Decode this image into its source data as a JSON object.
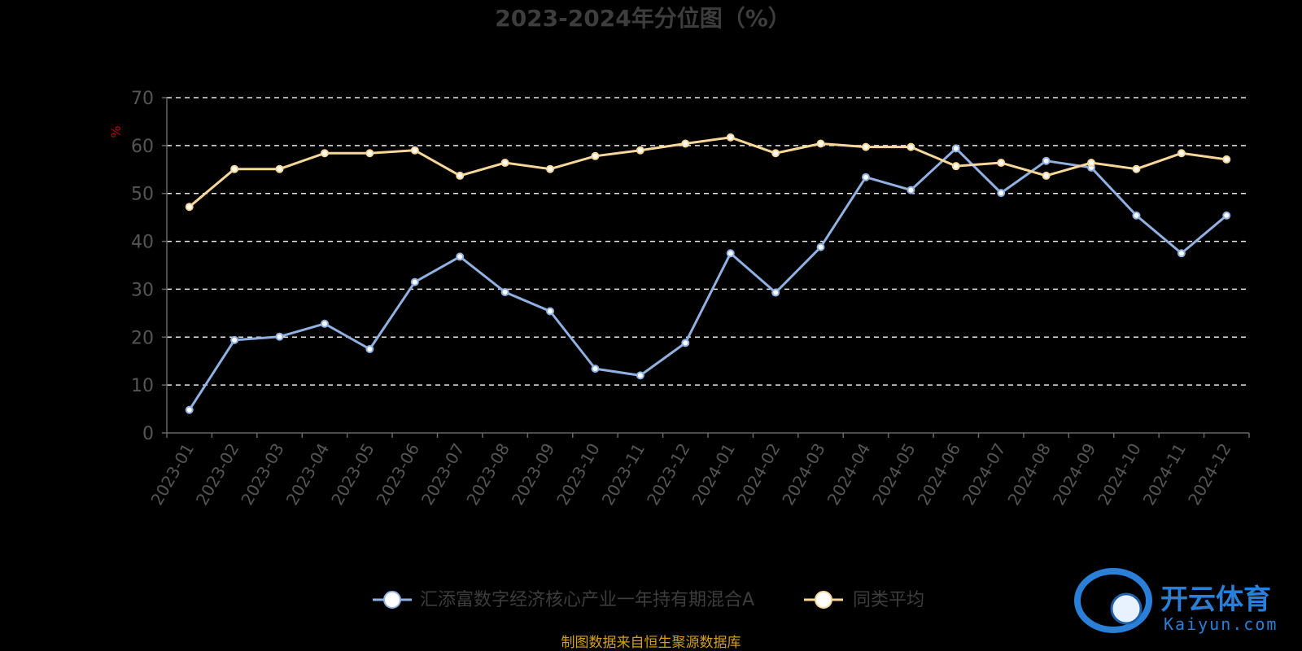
{
  "chart_data": {
    "type": "line",
    "title": "2023-2024年分位图（%）",
    "ylabel": "%",
    "ylim": [
      0,
      70
    ],
    "yticks": [
      0,
      10,
      20,
      30,
      40,
      50,
      60,
      70
    ],
    "grid": true,
    "legend_position": "bottom-center",
    "categories": [
      "2023-01",
      "2023-02",
      "2023-03",
      "2023-04",
      "2023-05",
      "2023-06",
      "2023-07",
      "2023-08",
      "2023-09",
      "2023-10",
      "2023-11",
      "2023-12",
      "2024-01",
      "2024-02",
      "2024-03",
      "2024-04",
      "2024-05",
      "2024-06",
      "2024-07",
      "2024-08",
      "2024-09",
      "2024-10",
      "2024-11",
      "2024-12"
    ],
    "series": [
      {
        "name": "汇添富数字经济核心产业一年持有期混合A",
        "color": "#8fb0e0",
        "values": [
          4.8,
          19.4,
          20.1,
          22.8,
          17.5,
          31.5,
          36.8,
          29.4,
          25.4,
          13.4,
          12.0,
          18.8,
          37.5,
          29.3,
          38.8,
          53.4,
          50.7,
          59.4,
          50.1,
          56.8,
          55.4,
          45.4,
          37.5,
          45.4
        ]
      },
      {
        "name": "同类平均",
        "color": "#f7d799",
        "values": [
          47.2,
          55.1,
          55.1,
          58.4,
          58.4,
          59.0,
          53.7,
          56.4,
          55.1,
          57.8,
          59.0,
          60.4,
          61.7,
          58.4,
          60.4,
          59.7,
          59.7,
          55.7,
          56.4,
          53.7,
          56.4,
          55.1,
          58.4,
          57.1
        ]
      }
    ]
  },
  "footer": {
    "source": "制图数据来自恒生聚源数据库"
  },
  "watermark": {
    "name_cn": "开云体育",
    "name_en": "Kaiyun.com"
  }
}
